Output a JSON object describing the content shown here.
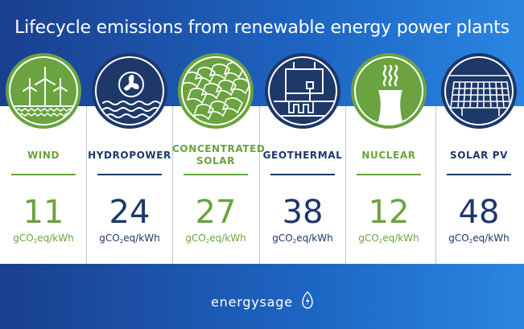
{
  "title": "Lifecycle emissions from renewable energy power plants",
  "unit": {
    "prefix": "gCO",
    "sub": "2",
    "suffix": "eq/kWh"
  },
  "colors": {
    "green": "#6aa33f",
    "navy": "#1d3869",
    "background": "#1e66c4"
  },
  "sources": [
    {
      "id": "wind",
      "name": "WIND",
      "value": "11",
      "theme": "green",
      "icon": "wind-turbine-icon"
    },
    {
      "id": "hydropower",
      "name": "HYDROPOWER",
      "value": "24",
      "theme": "navy",
      "icon": "water-turbine-icon"
    },
    {
      "id": "concentrated-solar",
      "name": "CONCENTRATED SOLAR",
      "name_lines": [
        "CONCENTRATED",
        "SOLAR"
      ],
      "value": "27",
      "theme": "green",
      "icon": "solar-mirror-icon"
    },
    {
      "id": "geothermal",
      "name": "GEOTHERMAL",
      "value": "38",
      "theme": "navy",
      "icon": "geothermal-plant-icon"
    },
    {
      "id": "nuclear",
      "name": "NUCLEAR",
      "value": "12",
      "theme": "green",
      "icon": "cooling-tower-icon"
    },
    {
      "id": "solar-pv",
      "name": "SOLAR PV",
      "value": "48",
      "theme": "navy",
      "icon": "solar-panel-icon"
    }
  ],
  "brand": {
    "name": "energysage",
    "icon": "leaf-bolt-icon"
  }
}
